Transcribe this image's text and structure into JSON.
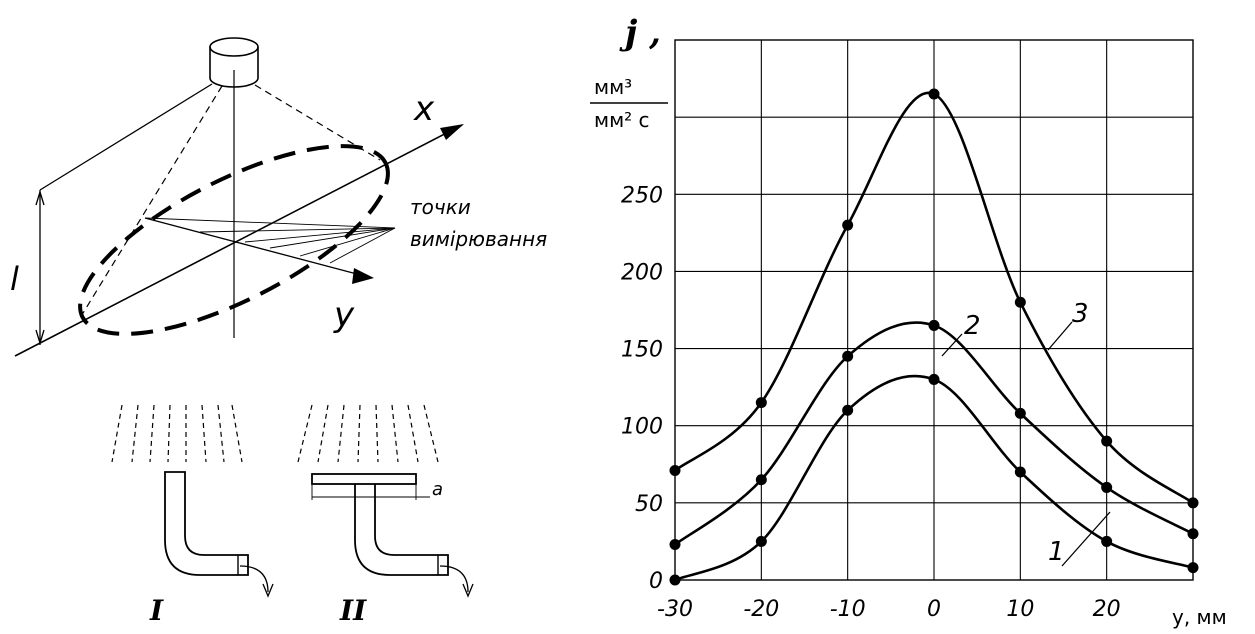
{
  "diagram": {
    "axis_x_label": "x",
    "axis_y_label": "y",
    "height_label": "l",
    "points_label_line1": "точки",
    "points_label_line2": "вимірювання",
    "nozzle_I_label": "I",
    "nozzle_II_label": "II",
    "gap_label": "a"
  },
  "chart_data": {
    "type": "line",
    "ylabel": "j ,",
    "ylabel_unit_num": "мм³",
    "ylabel_unit_den": "мм² с",
    "xlabel": "y, мм",
    "xlim": [
      -30,
      30
    ],
    "ylim": [
      0,
      350
    ],
    "x_ticks": [
      -30,
      -20,
      -10,
      0,
      10,
      20
    ],
    "y_ticks": [
      0,
      50,
      100,
      150,
      200,
      250
    ],
    "grid": true,
    "series": [
      {
        "name": "1",
        "x": [
          -30,
          -20,
          -10,
          0,
          10,
          20,
          30
        ],
        "y": [
          0,
          25,
          110,
          130,
          70,
          25,
          8
        ]
      },
      {
        "name": "2",
        "x": [
          -30,
          -20,
          -10,
          0,
          10,
          20,
          30
        ],
        "y": [
          23,
          65,
          145,
          165,
          108,
          60,
          30
        ]
      },
      {
        "name": "3",
        "x": [
          -30,
          -20,
          -10,
          0,
          10,
          20,
          30
        ],
        "y": [
          71,
          115,
          230,
          315,
          180,
          90,
          50
        ]
      }
    ]
  }
}
